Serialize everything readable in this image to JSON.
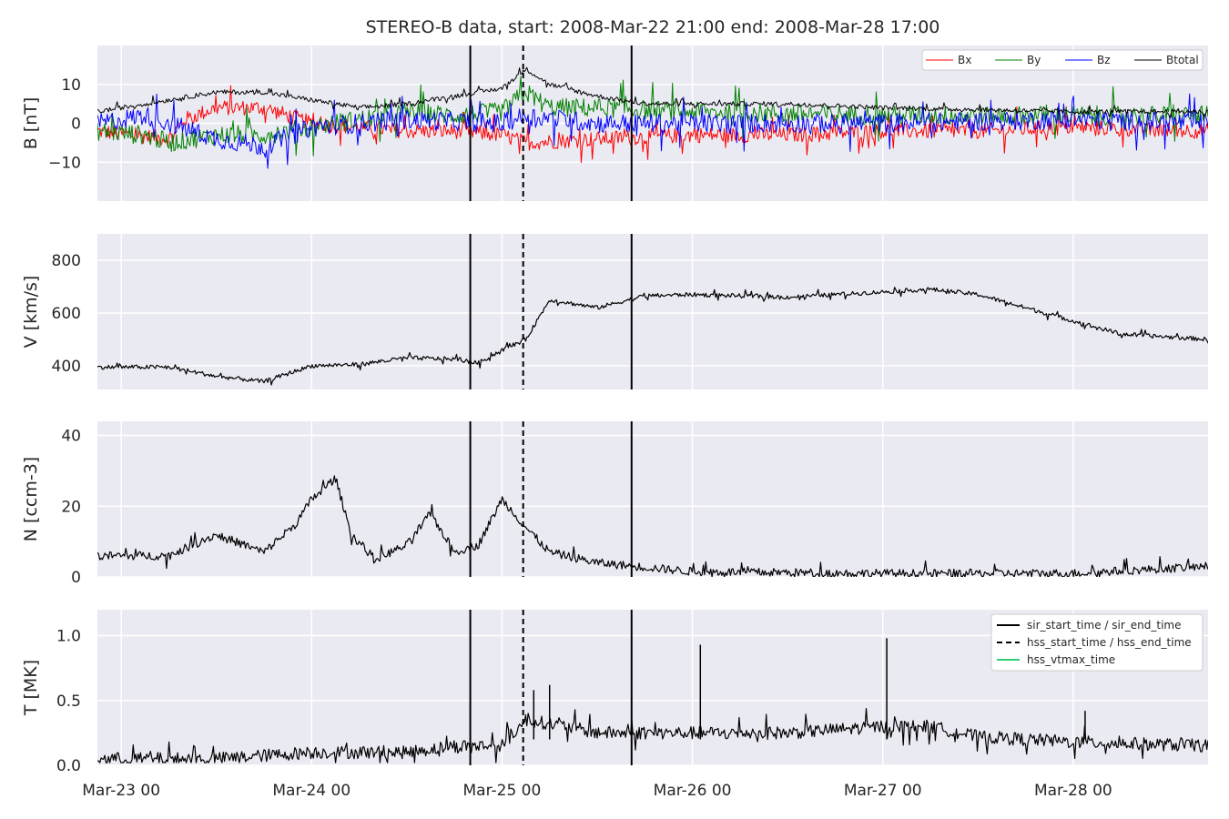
{
  "chart_data": {
    "type": "line",
    "title": "STEREO-B data, start: 2008-Mar-22 21:00  end: 2008-Mar-28 17:00",
    "x_range": [
      "2008-03-22 21:00",
      "2008-03-28 17:00"
    ],
    "x_ticks": [
      {
        "t": "2008-03-23 00:00",
        "label": "Mar-23 00"
      },
      {
        "t": "2008-03-24 00:00",
        "label": "Mar-24 00"
      },
      {
        "t": "2008-03-25 00:00",
        "label": "Mar-25 00"
      },
      {
        "t": "2008-03-26 00:00",
        "label": "Mar-26 00"
      },
      {
        "t": "2008-03-27 00:00",
        "label": "Mar-27 00"
      },
      {
        "t": "2008-03-28 00:00",
        "label": "Mar-28 00"
      }
    ],
    "grid": true,
    "background": "#eaeaf2",
    "event_lines": [
      {
        "name": "sir_start_time / sir_end_time",
        "style": "solid",
        "color": "#000000",
        "times": [
          "2008-03-24 20:00",
          "2008-03-25 16:20"
        ]
      },
      {
        "name": "hss_start_time / hss_end_time",
        "style": "dashed",
        "color": "#000000",
        "times": [
          "2008-03-25 02:40"
        ]
      },
      {
        "name": "hss_vtmax_time",
        "style": "solid",
        "color": "#2ecc71",
        "times": []
      }
    ],
    "panels": [
      {
        "ylabel": "B [nT]",
        "ylim": [
          -20,
          20
        ],
        "yticks": [
          {
            "v": 10,
            "label": "10"
          },
          {
            "v": 0,
            "label": "0"
          },
          {
            "v": -10,
            "label": "−10"
          }
        ],
        "legend_position": "top-right",
        "series": [
          {
            "name": "Bx",
            "color": "#ff0000",
            "width": 1,
            "noise": 2.0,
            "points": [
              [
                "2008-03-22 21:00",
                -2
              ],
              [
                "2008-03-23 06:00",
                -4
              ],
              [
                "2008-03-23 08:00",
                1
              ],
              [
                "2008-03-23 12:00",
                4
              ],
              [
                "2008-03-23 18:00",
                4
              ],
              [
                "2008-03-24 00:00",
                0
              ],
              [
                "2008-03-24 06:00",
                -1
              ],
              [
                "2008-03-24 12:00",
                -2
              ],
              [
                "2008-03-24 18:00",
                -2
              ],
              [
                "2008-03-25 00:00",
                -3
              ],
              [
                "2008-03-25 03:00",
                -5
              ],
              [
                "2008-03-25 12:00",
                -4
              ],
              [
                "2008-03-26 00:00",
                -3
              ],
              [
                "2008-03-26 12:00",
                -3
              ],
              [
                "2008-03-27 00:00",
                -2
              ],
              [
                "2008-03-27 12:00",
                -2
              ],
              [
                "2008-03-28 00:00",
                -1
              ],
              [
                "2008-03-28 17:00",
                -2
              ]
            ]
          },
          {
            "name": "By",
            "color": "#008000",
            "width": 1,
            "noise": 2.5,
            "points": [
              [
                "2008-03-22 21:00",
                -2
              ],
              [
                "2008-03-23 03:00",
                -3
              ],
              [
                "2008-03-23 06:00",
                -5
              ],
              [
                "2008-03-23 12:00",
                -3
              ],
              [
                "2008-03-23 18:00",
                -3
              ],
              [
                "2008-03-24 00:00",
                -1
              ],
              [
                "2008-03-24 06:00",
                1
              ],
              [
                "2008-03-24 12:00",
                3
              ],
              [
                "2008-03-24 18:00",
                2
              ],
              [
                "2008-03-25 00:00",
                3
              ],
              [
                "2008-03-25 03:00",
                8
              ],
              [
                "2008-03-25 06:00",
                4
              ],
              [
                "2008-03-25 12:00",
                4
              ],
              [
                "2008-03-26 00:00",
                3
              ],
              [
                "2008-03-27 00:00",
                2
              ],
              [
                "2008-03-28 00:00",
                2
              ],
              [
                "2008-03-28 17:00",
                2
              ]
            ]
          },
          {
            "name": "Bz",
            "color": "#0000ff",
            "width": 1,
            "noise": 2.5,
            "points": [
              [
                "2008-03-22 21:00",
                0
              ],
              [
                "2008-03-23 03:00",
                2
              ],
              [
                "2008-03-23 12:00",
                -4
              ],
              [
                "2008-03-23 18:00",
                -6
              ],
              [
                "2008-03-24 00:00",
                -1
              ],
              [
                "2008-03-24 12:00",
                1
              ],
              [
                "2008-03-25 00:00",
                0
              ],
              [
                "2008-03-25 03:00",
                2
              ],
              [
                "2008-03-25 12:00",
                0
              ],
              [
                "2008-03-26 00:00",
                0
              ],
              [
                "2008-03-27 00:00",
                0
              ],
              [
                "2008-03-28 00:00",
                1
              ],
              [
                "2008-03-28 17:00",
                0
              ]
            ]
          },
          {
            "name": "Btotal",
            "color": "#000000",
            "width": 1,
            "noise": 0.6,
            "points": [
              [
                "2008-03-22 21:00",
                3
              ],
              [
                "2008-03-23 06:00",
                6
              ],
              [
                "2008-03-23 12:00",
                8
              ],
              [
                "2008-03-23 18:00",
                8
              ],
              [
                "2008-03-24 00:00",
                6
              ],
              [
                "2008-03-24 06:00",
                4
              ],
              [
                "2008-03-24 12:00",
                5
              ],
              [
                "2008-03-24 18:00",
                7
              ],
              [
                "2008-03-25 00:00",
                9
              ],
              [
                "2008-03-25 03:00",
                14
              ],
              [
                "2008-03-25 06:00",
                10
              ],
              [
                "2008-03-25 12:00",
                7
              ],
              [
                "2008-03-25 18:00",
                5
              ],
              [
                "2008-03-26 12:00",
                5
              ],
              [
                "2008-03-27 00:00",
                4
              ],
              [
                "2008-03-28 00:00",
                3
              ],
              [
                "2008-03-28 17:00",
                3
              ]
            ]
          }
        ]
      },
      {
        "ylabel": "V [km/s]",
        "ylim": [
          310,
          900
        ],
        "yticks": [
          {
            "v": 800,
            "label": "800"
          },
          {
            "v": 600,
            "label": "600"
          },
          {
            "v": 400,
            "label": "400"
          }
        ],
        "series": [
          {
            "name": "V",
            "color": "#000000",
            "width": 1.2,
            "noise": 8,
            "points": [
              [
                "2008-03-22 21:00",
                395
              ],
              [
                "2008-03-23 06:00",
                395
              ],
              [
                "2008-03-23 12:00",
                360
              ],
              [
                "2008-03-23 18:00",
                340
              ],
              [
                "2008-03-24 00:00",
                400
              ],
              [
                "2008-03-24 06:00",
                405
              ],
              [
                "2008-03-24 12:00",
                430
              ],
              [
                "2008-03-24 18:00",
                425
              ],
              [
                "2008-03-24 21:00",
                410
              ],
              [
                "2008-03-25 00:00",
                460
              ],
              [
                "2008-03-25 03:00",
                500
              ],
              [
                "2008-03-25 06:00",
                650
              ],
              [
                "2008-03-25 12:00",
                620
              ],
              [
                "2008-03-25 18:00",
                665
              ],
              [
                "2008-03-26 00:00",
                670
              ],
              [
                "2008-03-26 12:00",
                660
              ],
              [
                "2008-03-27 00:00",
                680
              ],
              [
                "2008-03-27 06:00",
                690
              ],
              [
                "2008-03-27 12:00",
                670
              ],
              [
                "2008-03-27 18:00",
                620
              ],
              [
                "2008-03-28 00:00",
                570
              ],
              [
                "2008-03-28 06:00",
                520
              ],
              [
                "2008-03-28 17:00",
                500
              ]
            ]
          }
        ]
      },
      {
        "ylabel": "N [ccm-3]",
        "ylim": [
          0,
          44
        ],
        "yticks": [
          {
            "v": 40,
            "label": "40"
          },
          {
            "v": 20,
            "label": "20"
          },
          {
            "v": 0,
            "label": "0"
          }
        ],
        "series": [
          {
            "name": "N",
            "color": "#000000",
            "width": 1.2,
            "noise": 1.2,
            "points": [
              [
                "2008-03-22 21:00",
                6
              ],
              [
                "2008-03-23 06:00",
                6
              ],
              [
                "2008-03-23 12:00",
                12
              ],
              [
                "2008-03-23 18:00",
                7
              ],
              [
                "2008-03-23 22:00",
                15
              ],
              [
                "2008-03-24 00:00",
                22
              ],
              [
                "2008-03-24 03:00",
                28
              ],
              [
                "2008-03-24 05:00",
                12
              ],
              [
                "2008-03-24 08:00",
                5
              ],
              [
                "2008-03-24 12:00",
                9
              ],
              [
                "2008-03-24 15:00",
                18
              ],
              [
                "2008-03-24 18:00",
                7
              ],
              [
                "2008-03-24 21:00",
                9
              ],
              [
                "2008-03-25 00:00",
                22
              ],
              [
                "2008-03-25 03:00",
                14
              ],
              [
                "2008-03-25 06:00",
                7
              ],
              [
                "2008-03-25 12:00",
                4
              ],
              [
                "2008-03-26 00:00",
                1.5
              ],
              [
                "2008-03-27 00:00",
                1
              ],
              [
                "2008-03-28 00:00",
                1
              ],
              [
                "2008-03-28 17:00",
                3
              ]
            ]
          }
        ]
      },
      {
        "ylabel": "T [MK]",
        "ylim": [
          0,
          1.2
        ],
        "yticks": [
          {
            "v": 1.0,
            "label": "1.0"
          },
          {
            "v": 0.5,
            "label": "0.5"
          },
          {
            "v": 0.0,
            "label": "0.0"
          }
        ],
        "legend_position": "top-right",
        "series": [
          {
            "name": "T",
            "color": "#000000",
            "width": 1.2,
            "noise": 0.05,
            "points": [
              [
                "2008-03-22 21:00",
                0.05
              ],
              [
                "2008-03-23 12:00",
                0.05
              ],
              [
                "2008-03-24 00:00",
                0.1
              ],
              [
                "2008-03-24 12:00",
                0.1
              ],
              [
                "2008-03-24 18:00",
                0.15
              ],
              [
                "2008-03-25 00:00",
                0.15
              ],
              [
                "2008-03-25 03:00",
                0.35
              ],
              [
                "2008-03-25 08:00",
                0.3
              ],
              [
                "2008-03-25 12:00",
                0.25
              ],
              [
                "2008-03-26 00:00",
                0.25
              ],
              [
                "2008-03-26 12:00",
                0.25
              ],
              [
                "2008-03-27 00:00",
                0.3
              ],
              [
                "2008-03-27 06:00",
                0.3
              ],
              [
                "2008-03-27 12:00",
                0.22
              ],
              [
                "2008-03-28 00:00",
                0.18
              ],
              [
                "2008-03-28 17:00",
                0.15
              ]
            ]
          }
        ],
        "spikes": [
          [
            "2008-03-26 01:00",
            0.93
          ],
          [
            "2008-03-27 00:30",
            0.98
          ],
          [
            "2008-03-25 06:00",
            0.62
          ],
          [
            "2008-03-25 04:00",
            0.58
          ],
          [
            "2008-03-28 01:30",
            0.42
          ],
          [
            "2008-03-24 20:00",
            0.45
          ]
        ]
      }
    ]
  }
}
